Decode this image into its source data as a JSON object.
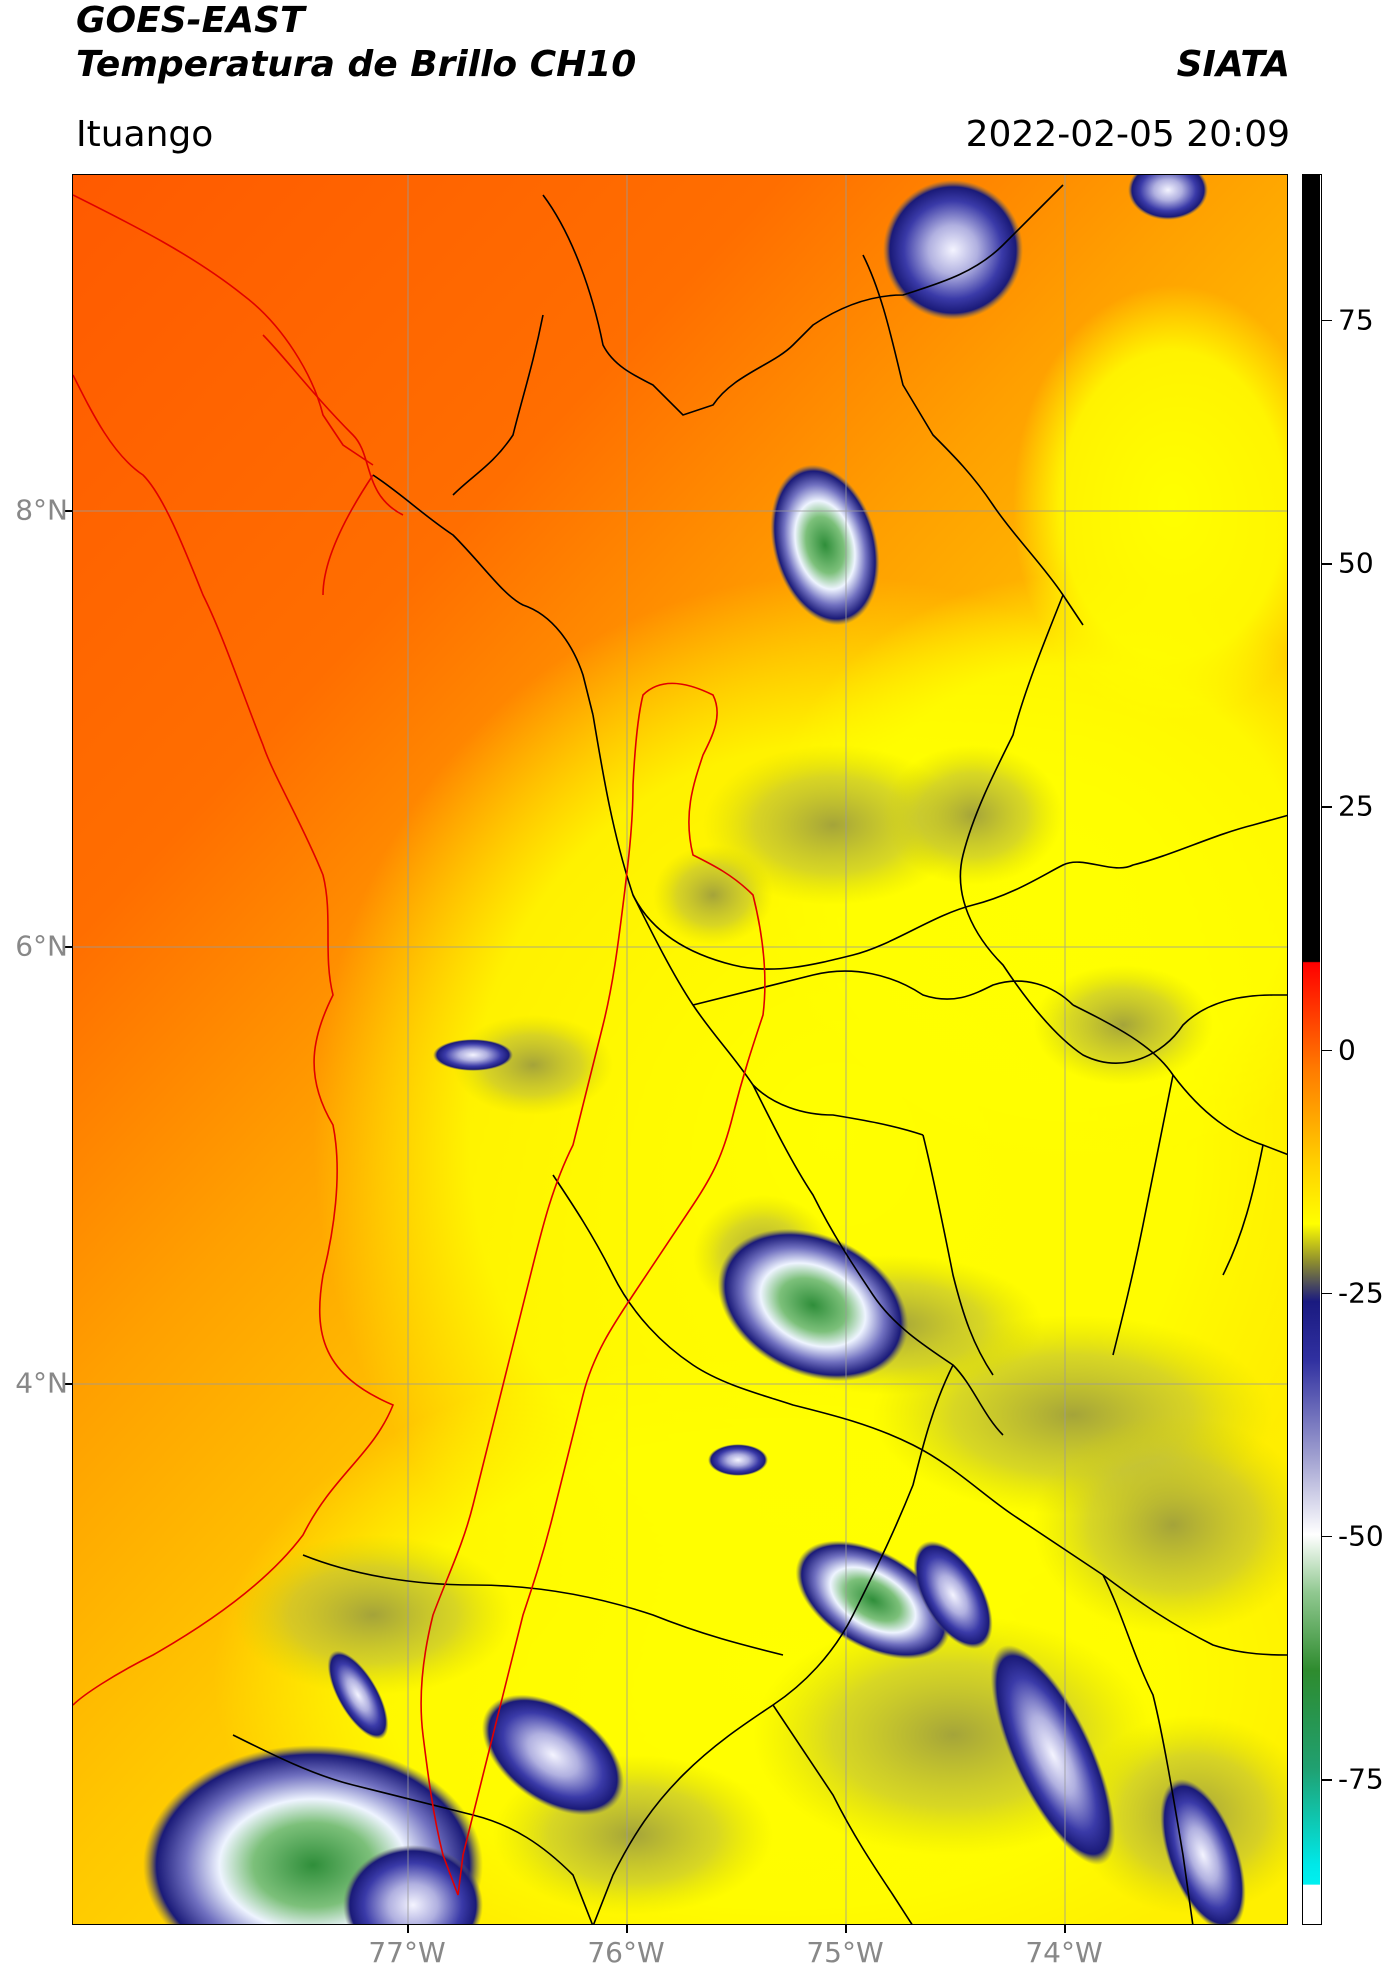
{
  "header": {
    "satellite": "GOES-EAST",
    "product": "Temperatura de Brillo CH10",
    "organization": "SIATA",
    "location": "Ituango",
    "datetime": "2022-02-05 20:09"
  },
  "map": {
    "lat_ticks": [
      "8°N",
      "6°N",
      "4°N"
    ],
    "lon_ticks": [
      "77°W",
      "76°W",
      "75°W",
      "74°W"
    ],
    "colors": {
      "coastline": "#e00000",
      "borders": "#000000",
      "watershed": "#e00000",
      "graticule": "#9a9a9a"
    }
  },
  "colorbar": {
    "ticks": [
      "75",
      "50",
      "25",
      "0",
      "-25",
      "-50",
      "-75"
    ],
    "stops": [
      {
        "value": 90,
        "color": "#000000"
      },
      {
        "value": 9,
        "color": "#000000"
      },
      {
        "value": 8.9,
        "color": "#ff0000"
      },
      {
        "value": -2,
        "color": "#ff7a00"
      },
      {
        "value": -12,
        "color": "#ffd200"
      },
      {
        "value": -18,
        "color": "#ffff00"
      },
      {
        "value": -22,
        "color": "#8a8a30"
      },
      {
        "value": -26,
        "color": "#1a1a80"
      },
      {
        "value": -32,
        "color": "#3030a0"
      },
      {
        "value": -42,
        "color": "#a0a0d0"
      },
      {
        "value": -50,
        "color": "#ffffff"
      },
      {
        "value": -56,
        "color": "#90c890"
      },
      {
        "value": -64,
        "color": "#2e8b2e"
      },
      {
        "value": -74,
        "color": "#20a070"
      },
      {
        "value": -84,
        "color": "#00e8e8"
      },
      {
        "value": -86,
        "color": "#00f0f0"
      },
      {
        "value": -86.1,
        "color": "#ffffff"
      },
      {
        "value": -90,
        "color": "#ffffff"
      }
    ],
    "range": [
      -90,
      90
    ]
  }
}
